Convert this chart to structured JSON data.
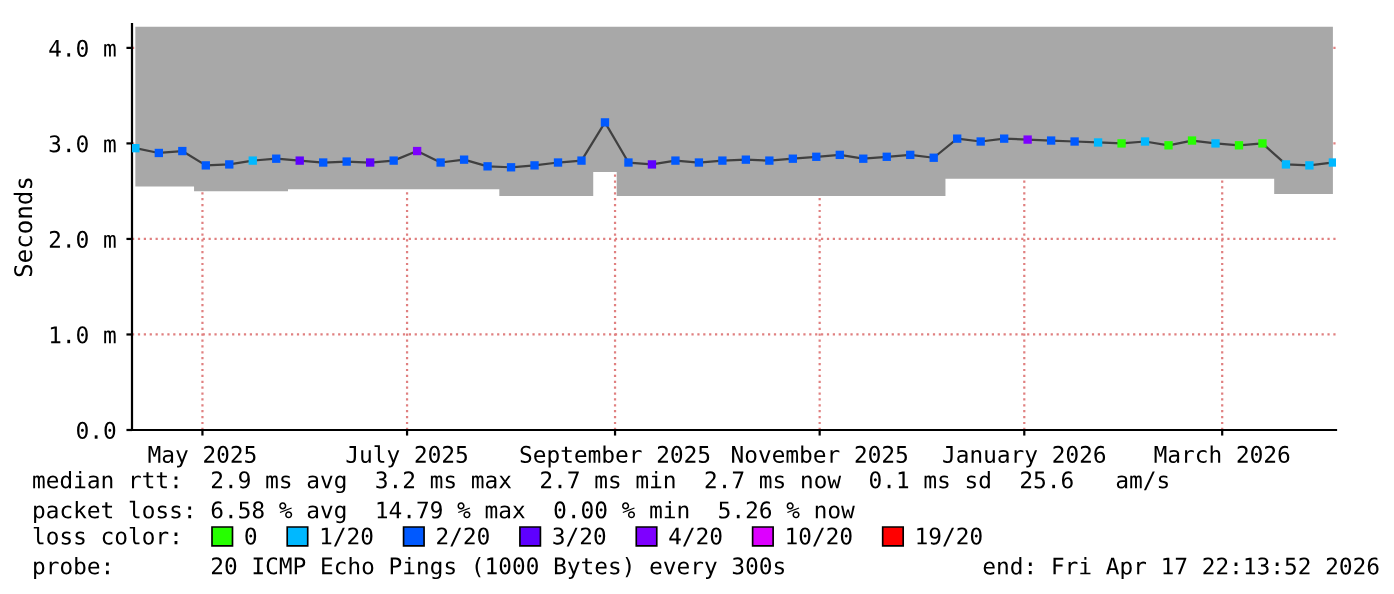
{
  "chart_data": {
    "type": "scatter",
    "ylabel": "Seconds",
    "xlim": [
      "2025-04-24",
      "2026-04-17T22:13"
    ],
    "xticks": [
      {
        "value": "2025-05-15",
        "label": "May 2025"
      },
      {
        "value": "2025-07-15",
        "label": "July 2025"
      },
      {
        "value": "2025-09-15",
        "label": "September 2025"
      },
      {
        "value": "2025-11-15",
        "label": "November 2025"
      },
      {
        "value": "2026-01-15",
        "label": "January 2026"
      },
      {
        "value": "2026-03-15",
        "label": "March 2026"
      }
    ],
    "ylim": [
      0,
      4.25
    ],
    "yticks": [
      {
        "value": 0,
        "label": "0.0"
      },
      {
        "value": 1,
        "label": "1.0 m"
      },
      {
        "value": 2,
        "label": "2.0 m"
      },
      {
        "value": 3,
        "label": "3.0 m"
      },
      {
        "value": 4,
        "label": "4.0 m"
      }
    ],
    "grid": true,
    "marker": "square",
    "legend": "bottom",
    "legend_title": "loss color:",
    "series": [
      {
        "type": "line",
        "marker": "none",
        "color": "#404040",
        "x": [
          "2025-04-25",
          "2025-05-02",
          "2025-05-09",
          "2025-05-16",
          "2025-05-23",
          "2025-05-30",
          "2025-06-06",
          "2025-06-13",
          "2025-06-20",
          "2025-06-27",
          "2025-07-04",
          "2025-07-11",
          "2025-07-18",
          "2025-07-25",
          "2025-08-01",
          "2025-08-08",
          "2025-08-15",
          "2025-08-22",
          "2025-08-29",
          "2025-09-05",
          "2025-09-12",
          "2025-09-19",
          "2025-09-26",
          "2025-10-03",
          "2025-10-10",
          "2025-10-17",
          "2025-10-24",
          "2025-10-31",
          "2025-11-07",
          "2025-11-14",
          "2025-11-21",
          "2025-11-28",
          "2025-12-05",
          "2025-12-12",
          "2025-12-19",
          "2025-12-26",
          "2026-01-02",
          "2026-01-09",
          "2026-01-16",
          "2026-01-23",
          "2026-01-30",
          "2026-02-06",
          "2026-02-13",
          "2026-02-20",
          "2026-02-27",
          "2026-03-06",
          "2026-03-13",
          "2026-03-20",
          "2026-03-27",
          "2026-04-03",
          "2026-04-10",
          "2026-04-17"
        ],
        "lower": [
          2.55,
          2.55,
          2.55,
          2.5,
          2.5,
          2.5,
          2.5,
          2.52,
          2.52,
          2.52,
          2.52,
          2.52,
          2.52,
          2.52,
          2.52,
          2.52,
          2.45,
          2.45,
          2.45,
          2.45,
          2.7,
          2.45,
          2.45,
          2.45,
          2.45,
          2.45,
          2.45,
          2.45,
          2.45,
          2.45,
          2.45,
          2.45,
          2.45,
          2.45,
          2.45,
          2.63,
          2.63,
          2.63,
          2.63,
          2.63,
          2.63,
          2.63,
          2.63,
          2.63,
          2.63,
          2.63,
          2.63,
          2.63,
          2.63,
          2.47,
          2.47,
          2.47
        ],
        "upper": [
          4.22,
          4.22,
          4.22,
          4.22,
          4.22,
          4.22,
          4.22,
          4.22,
          4.22,
          4.22,
          4.22,
          4.22,
          4.22,
          4.22,
          4.22,
          4.22,
          4.22,
          4.22,
          4.22,
          4.22,
          4.22,
          4.22,
          4.22,
          4.22,
          4.22,
          4.22,
          4.22,
          4.22,
          4.22,
          4.22,
          4.22,
          4.22,
          4.22,
          4.22,
          4.22,
          4.22,
          4.22,
          4.22,
          4.22,
          4.22,
          4.22,
          4.22,
          4.22,
          4.22,
          4.22,
          4.22,
          4.22,
          4.22,
          4.22,
          4.22,
          4.22,
          4.22
        ],
        "values": [
          2.95,
          2.9,
          2.92,
          2.77,
          2.78,
          2.82,
          2.84,
          2.82,
          2.8,
          2.81,
          2.8,
          2.82,
          2.92,
          2.8,
          2.83,
          2.76,
          2.75,
          2.77,
          2.8,
          2.82,
          3.22,
          2.8,
          2.78,
          2.82,
          2.8,
          2.82,
          2.83,
          2.82,
          2.84,
          2.86,
          2.88,
          2.84,
          2.86,
          2.88,
          2.85,
          3.05,
          3.02,
          3.05,
          3.04,
          3.03,
          3.02,
          3.01,
          3.0,
          3.02,
          2.98,
          3.03,
          3.0,
          2.98,
          3.0,
          2.78,
          2.77,
          2.8
        ]
      },
      {
        "name": "0",
        "color": "#26ff00",
        "x": [
          "2026-02-13",
          "2026-02-27",
          "2026-03-06",
          "2026-03-20",
          "2026-03-27"
        ],
        "values": [
          3.0,
          2.98,
          3.03,
          2.98,
          3.0
        ]
      },
      {
        "name": "1/20",
        "color": "#00b8ff",
        "x": [
          "2025-04-25",
          "2025-05-30",
          "2026-02-06",
          "2026-02-20",
          "2026-03-13",
          "2026-04-03",
          "2026-04-10",
          "2026-04-17"
        ],
        "values": [
          2.95,
          2.82,
          3.01,
          3.02,
          3.0,
          2.78,
          2.77,
          2.8
        ]
      },
      {
        "name": "2/20",
        "color": "#0059ff",
        "x": [
          "2025-05-02",
          "2025-05-09",
          "2025-05-16",
          "2025-05-23",
          "2025-06-06",
          "2025-06-20",
          "2025-06-27",
          "2025-07-11",
          "2025-07-25",
          "2025-08-01",
          "2025-08-08",
          "2025-08-15",
          "2025-08-22",
          "2025-08-29",
          "2025-09-05",
          "2025-09-12",
          "2025-09-19",
          "2025-10-03",
          "2025-10-10",
          "2025-10-17",
          "2025-10-24",
          "2025-10-31",
          "2025-11-07",
          "2025-11-14",
          "2025-11-21",
          "2025-11-28",
          "2025-12-05",
          "2025-12-12",
          "2025-12-19",
          "2025-12-26",
          "2026-01-02",
          "2026-01-09",
          "2026-01-23",
          "2026-01-30"
        ],
        "values": [
          2.9,
          2.92,
          2.77,
          2.78,
          2.84,
          2.8,
          2.81,
          2.82,
          2.8,
          2.83,
          2.76,
          2.75,
          2.77,
          2.8,
          2.82,
          3.22,
          2.8,
          2.82,
          2.8,
          2.82,
          2.83,
          2.82,
          2.84,
          2.86,
          2.88,
          2.84,
          2.86,
          2.88,
          2.85,
          3.05,
          3.02,
          3.05,
          3.03,
          3.02
        ]
      },
      {
        "name": "3/20",
        "color": "#5e00ff",
        "x": [
          "2025-06-13",
          "2025-07-04",
          "2025-09-26"
        ],
        "values": [
          2.82,
          2.8,
          2.78
        ]
      },
      {
        "name": "4/20",
        "color": "#7e00ff",
        "x": [
          "2025-07-18",
          "2026-01-16"
        ],
        "values": [
          2.92,
          3.04
        ]
      },
      {
        "name": "10/20",
        "color": "#dd00ff"
      },
      {
        "name": "19/20",
        "color": "#ff0000"
      }
    ],
    "annotations": [
      "median rtt:  2.9 ms avg  3.2 ms max  2.7 ms min  2.7 ms now  0.1 ms sd  25.6   am/s",
      "packet loss: 6.58 % avg  14.79 % max  0.00 % min  5.26 % now",
      "probe:       20 ICMP Echo Pings (1000 Bytes) every 300s",
      "end: Fri Apr 17 22:13:52 2026"
    ]
  }
}
